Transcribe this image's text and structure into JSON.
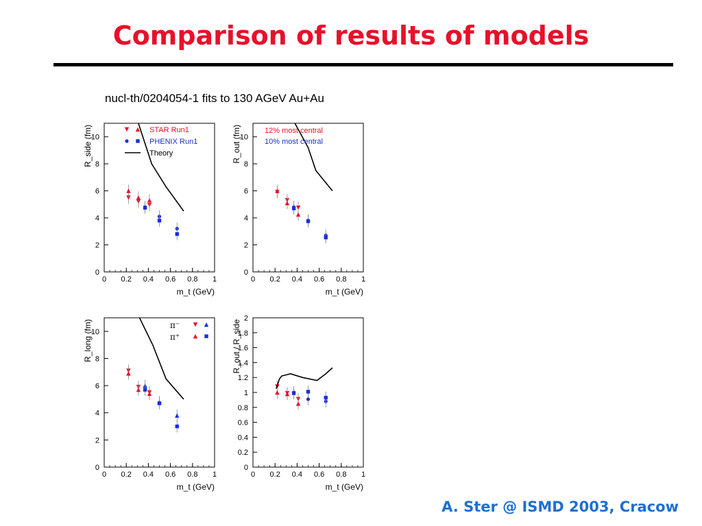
{
  "slide": {
    "title": "Comparison of results of models",
    "figure_caption": "nucl-th/0204054-1 fits to 130 AGeV Au+Au",
    "footer": "A. Ster @ ISMD 2003, Cracow"
  },
  "colors": {
    "star": "#e8102a",
    "phenix": "#1a2fd6",
    "theory": "#000000",
    "title": "#e8102a",
    "footer": "#1f6fd1"
  },
  "legend": {
    "star": "STAR Run1",
    "phenix": "PHENIX Run1",
    "theory": "Theory",
    "centrality_star": "12% most central",
    "centrality_phenix": "10% most central",
    "pi_minus": "π⁻",
    "pi_plus": "π⁺"
  },
  "chart_data": [
    {
      "type": "scatter",
      "panel": "rside",
      "ylabel": "R_side (fm)",
      "xlabel": "m_t (GeV)",
      "xlim": [
        0,
        1
      ],
      "ylim": [
        0,
        11
      ],
      "xticks": [
        0,
        0.2,
        0.4,
        0.6,
        0.8,
        1
      ],
      "xtick_labels": [
        "0",
        "0.2",
        "0.4",
        "0.6",
        "0.8",
        "1"
      ],
      "yticks": [
        0,
        2,
        4,
        6,
        8,
        10
      ],
      "ytick_labels": [
        "0",
        "2",
        "4",
        "6",
        "8",
        "10"
      ],
      "series": [
        {
          "name": "STAR Run1",
          "marker": "tri-down",
          "color": "#e8102a",
          "points": [
            [
              0.22,
              5.5
            ],
            [
              0.31,
              5.2
            ],
            [
              0.41,
              4.95
            ]
          ]
        },
        {
          "name": "STAR Run1",
          "marker": "tri-up",
          "color": "#e8102a",
          "points": [
            [
              0.22,
              6.0
            ],
            [
              0.31,
              5.5
            ],
            [
              0.41,
              5.3
            ]
          ]
        },
        {
          "name": "PHENIX Run1",
          "marker": "circle",
          "color": "#1a2fd6",
          "points": [
            [
              0.37,
              4.8
            ],
            [
              0.5,
              4.1
            ],
            [
              0.66,
              3.2
            ]
          ]
        },
        {
          "name": "PHENIX Run1",
          "marker": "square",
          "color": "#1a2fd6",
          "points": [
            [
              0.37,
              4.75
            ],
            [
              0.5,
              3.8
            ],
            [
              0.66,
              2.8
            ]
          ]
        },
        {
          "name": "Theory",
          "marker": "line",
          "color": "#000000",
          "points": [
            [
              0.31,
              11
            ],
            [
              0.43,
              8.0
            ],
            [
              0.56,
              6.3
            ],
            [
              0.72,
              4.5
            ]
          ]
        }
      ]
    },
    {
      "type": "scatter",
      "panel": "rout",
      "ylabel": "R_out (fm)",
      "xlabel": "m_t (GeV)",
      "xlim": [
        0,
        1
      ],
      "ylim": [
        0,
        11
      ],
      "xticks": [
        0,
        0.2,
        0.4,
        0.6,
        0.8,
        1
      ],
      "xtick_labels": [
        "0",
        "0.2",
        "0.4",
        "0.6",
        "0.8",
        "1"
      ],
      "yticks": [
        0,
        2,
        4,
        6,
        8,
        10
      ],
      "ytick_labels": [
        "0",
        "2",
        "4",
        "6",
        "8",
        "10"
      ],
      "series": [
        {
          "name": "STAR Run1",
          "marker": "tri-down",
          "color": "#e8102a",
          "points": [
            [
              0.22,
              5.9
            ],
            [
              0.31,
              5.3
            ],
            [
              0.41,
              4.75
            ]
          ]
        },
        {
          "name": "STAR Run1",
          "marker": "tri-up",
          "color": "#e8102a",
          "points": [
            [
              0.22,
              6.0
            ],
            [
              0.31,
              5.1
            ],
            [
              0.41,
              4.25
            ]
          ]
        },
        {
          "name": "PHENIX Run1",
          "marker": "circle",
          "color": "#1a2fd6",
          "points": [
            [
              0.37,
              4.8
            ],
            [
              0.5,
              3.8
            ],
            [
              0.66,
              2.7
            ]
          ]
        },
        {
          "name": "PHENIX Run1",
          "marker": "square",
          "color": "#1a2fd6",
          "points": [
            [
              0.37,
              4.7
            ],
            [
              0.5,
              3.75
            ],
            [
              0.66,
              2.55
            ]
          ]
        },
        {
          "name": "Theory",
          "marker": "line",
          "color": "#000000",
          "points": [
            [
              0.38,
              11
            ],
            [
              0.5,
              9.2
            ],
            [
              0.57,
              7.5
            ],
            [
              0.72,
              6.0
            ]
          ]
        }
      ]
    },
    {
      "type": "scatter",
      "panel": "rlong",
      "ylabel": "R_long (fm)",
      "xlabel": "m_t (GeV)",
      "xlim": [
        0,
        1
      ],
      "ylim": [
        0,
        11
      ],
      "xticks": [
        0,
        0.2,
        0.4,
        0.6,
        0.8,
        1
      ],
      "xtick_labels": [
        "0",
        "0.2",
        "0.4",
        "0.6",
        "0.8",
        "1"
      ],
      "yticks": [
        0,
        2,
        4,
        6,
        8,
        10
      ],
      "ytick_labels": [
        "0",
        "2",
        "4",
        "6",
        "8",
        "10"
      ],
      "series": [
        {
          "name": "π⁻ STAR",
          "marker": "tri-down",
          "color": "#e8102a",
          "points": [
            [
              0.22,
              7.1
            ],
            [
              0.31,
              5.9
            ],
            [
              0.41,
              5.5
            ]
          ]
        },
        {
          "name": "π⁺ STAR",
          "marker": "tri-up",
          "color": "#e8102a",
          "points": [
            [
              0.22,
              6.9
            ],
            [
              0.31,
              5.7
            ],
            [
              0.41,
              5.4
            ]
          ]
        },
        {
          "name": "π⁻ PHENIX",
          "marker": "triangle-up",
          "color": "#1a2fd6",
          "points": [
            [
              0.37,
              6.0
            ],
            [
              0.5,
              4.8
            ],
            [
              0.66,
              3.8
            ]
          ]
        },
        {
          "name": "π⁺ PHENIX",
          "marker": "square",
          "color": "#1a2fd6",
          "points": [
            [
              0.37,
              5.7
            ],
            [
              0.5,
              4.7
            ],
            [
              0.66,
              3.0
            ]
          ]
        },
        {
          "name": "Theory",
          "marker": "line",
          "color": "#000000",
          "points": [
            [
              0.32,
              11
            ],
            [
              0.44,
              9.0
            ],
            [
              0.56,
              6.5
            ],
            [
              0.72,
              5.0
            ]
          ]
        }
      ]
    },
    {
      "type": "scatter",
      "panel": "ratio",
      "ylabel": "R_out / R_side",
      "xlabel": "m_t (GeV)",
      "xlim": [
        0,
        1
      ],
      "ylim": [
        0,
        2
      ],
      "xticks": [
        0,
        0.2,
        0.4,
        0.6,
        0.8,
        1
      ],
      "xtick_labels": [
        "0",
        "0.2",
        "0.4",
        "0.6",
        "0.8",
        "1"
      ],
      "yticks": [
        0,
        0.2,
        0.4,
        0.6,
        0.8,
        1,
        1.2,
        1.4,
        1.6,
        1.8,
        2
      ],
      "ytick_labels": [
        "0",
        "0.2",
        "0.4",
        "0.6",
        "0.8",
        "1",
        "1.2",
        "1.4",
        "1.6",
        "1.8",
        "2"
      ],
      "series": [
        {
          "name": "STAR Run1",
          "marker": "tri-down",
          "color": "#e8102a",
          "points": [
            [
              0.22,
              1.08
            ],
            [
              0.31,
              0.99
            ],
            [
              0.41,
              0.91
            ]
          ]
        },
        {
          "name": "STAR Run1",
          "marker": "tri-up",
          "color": "#e8102a",
          "points": [
            [
              0.22,
              1.0
            ],
            [
              0.31,
              0.98
            ],
            [
              0.41,
              0.85
            ]
          ]
        },
        {
          "name": "PHENIX Run1",
          "marker": "circle",
          "color": "#1a2fd6",
          "points": [
            [
              0.37,
              1.0
            ],
            [
              0.5,
              0.91
            ],
            [
              0.66,
              0.88
            ]
          ]
        },
        {
          "name": "PHENIX Run1",
          "marker": "square",
          "color": "#1a2fd6",
          "points": [
            [
              0.37,
              0.99
            ],
            [
              0.5,
              1.01
            ],
            [
              0.66,
              0.93
            ]
          ]
        },
        {
          "name": "Theory",
          "marker": "line",
          "color": "#000000",
          "points": [
            [
              0.21,
              1.05
            ],
            [
              0.24,
              1.18
            ],
            [
              0.26,
              1.22
            ],
            [
              0.34,
              1.25
            ],
            [
              0.45,
              1.2
            ],
            [
              0.58,
              1.16
            ],
            [
              0.66,
              1.25
            ],
            [
              0.72,
              1.33
            ]
          ]
        }
      ]
    }
  ]
}
